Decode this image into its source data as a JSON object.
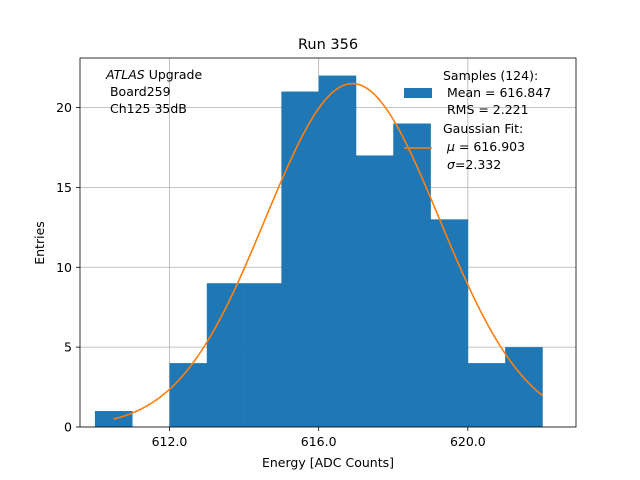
{
  "chart_data": {
    "type": "histogram",
    "title": "Run 356",
    "xlabel": "Energy [ADC Counts]",
    "ylabel": "Entries",
    "xlim": [
      609.6,
      622.9
    ],
    "ylim": [
      0,
      23.1
    ],
    "grid": true,
    "xticks": [
      612.0,
      616.0,
      620.0
    ],
    "xtick_labels": [
      "612.0",
      "616.0",
      "620.0"
    ],
    "yticks": [
      0,
      5,
      10,
      15,
      20
    ],
    "ytick_labels": [
      "0",
      "5",
      "10",
      "15",
      "20"
    ],
    "bins": [
      {
        "x0": 610,
        "x1": 611,
        "count": 1
      },
      {
        "x0": 611,
        "x1": 612,
        "count": 0
      },
      {
        "x0": 612,
        "x1": 613,
        "count": 4
      },
      {
        "x0": 613,
        "x1": 614,
        "count": 9
      },
      {
        "x0": 614,
        "x1": 615,
        "count": 9
      },
      {
        "x0": 615,
        "x1": 616,
        "count": 21
      },
      {
        "x0": 616,
        "x1": 617,
        "count": 22
      },
      {
        "x0": 617,
        "x1": 618,
        "count": 17
      },
      {
        "x0": 618,
        "x1": 619,
        "count": 19
      },
      {
        "x0": 619,
        "x1": 620,
        "count": 13
      },
      {
        "x0": 620,
        "x1": 621,
        "count": 4
      },
      {
        "x0": 621,
        "x1": 622,
        "count": 5
      }
    ],
    "fit": {
      "name": "Gaussian Fit",
      "mu": 616.903,
      "sigma": 2.332,
      "amplitude": 21.5,
      "x_range": [
        610.5,
        622.0
      ]
    },
    "colors": {
      "bars": "#1f77b4",
      "fit": "#ff7f0e",
      "grid": "#b0b0b0"
    },
    "annotation": {
      "italic_part": "ATLAS",
      "rest_line1": " Upgrade",
      "line2": " Board259",
      "line3": " Ch125 35dB"
    },
    "legend": {
      "position": "top-right",
      "hist_lines": [
        "Samples (124):",
        " Mean = 616.847",
        " RMS = 2.221"
      ],
      "fit_title": "Gaussian Fit:",
      "fit_mu_symbol": "μ",
      "fit_mu_value": " = 616.903",
      "fit_sigma_symbol": "σ",
      "fit_sigma_value": "=2.332"
    }
  }
}
